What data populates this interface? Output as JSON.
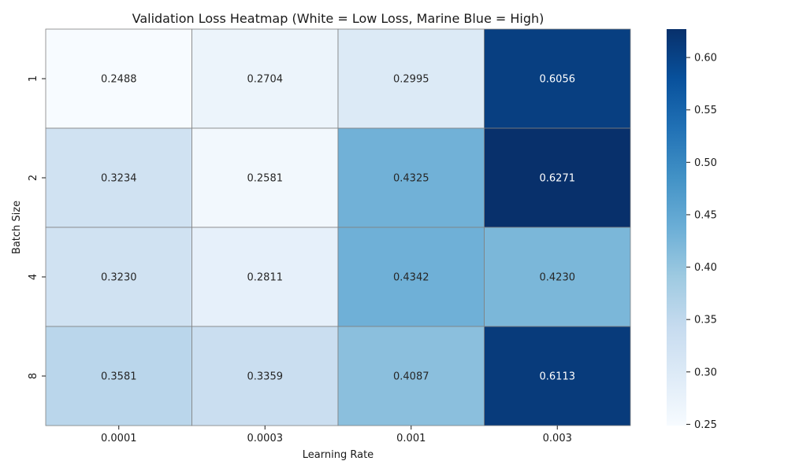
{
  "chart_data": {
    "type": "heatmap",
    "title": "Validation Loss Heatmap (White = Low Loss, Marine Blue = High)",
    "xlabel": "Learning Rate",
    "ylabel": "Batch Size",
    "x_categories": [
      "0.0001",
      "0.0003",
      "0.001",
      "0.003"
    ],
    "y_categories": [
      "1",
      "2",
      "4",
      "8"
    ],
    "values": [
      [
        0.2488,
        0.2704,
        0.2995,
        0.6056
      ],
      [
        0.3234,
        0.2581,
        0.4325,
        0.6271
      ],
      [
        0.323,
        0.2811,
        0.4342,
        0.423
      ],
      [
        0.3581,
        0.3359,
        0.4087,
        0.6113
      ]
    ],
    "value_labels": [
      [
        "0.2488",
        "0.2704",
        "0.2995",
        "0.6056"
      ],
      [
        "0.3234",
        "0.2581",
        "0.4325",
        "0.6271"
      ],
      [
        "0.3230",
        "0.2811",
        "0.4342",
        "0.4230"
      ],
      [
        "0.3581",
        "0.3359",
        "0.4087",
        "0.6113"
      ]
    ],
    "colorbar": {
      "range": [
        0.2488,
        0.6271
      ],
      "ticks": [
        "0.25",
        "0.30",
        "0.35",
        "0.40",
        "0.45",
        "0.50",
        "0.55",
        "0.60"
      ],
      "colormap": "Blues",
      "low_color": "#f7fbff",
      "high_color": "#08306b"
    },
    "cell_border_color": "#808080",
    "grid": false,
    "legend": "colorbar-right"
  }
}
